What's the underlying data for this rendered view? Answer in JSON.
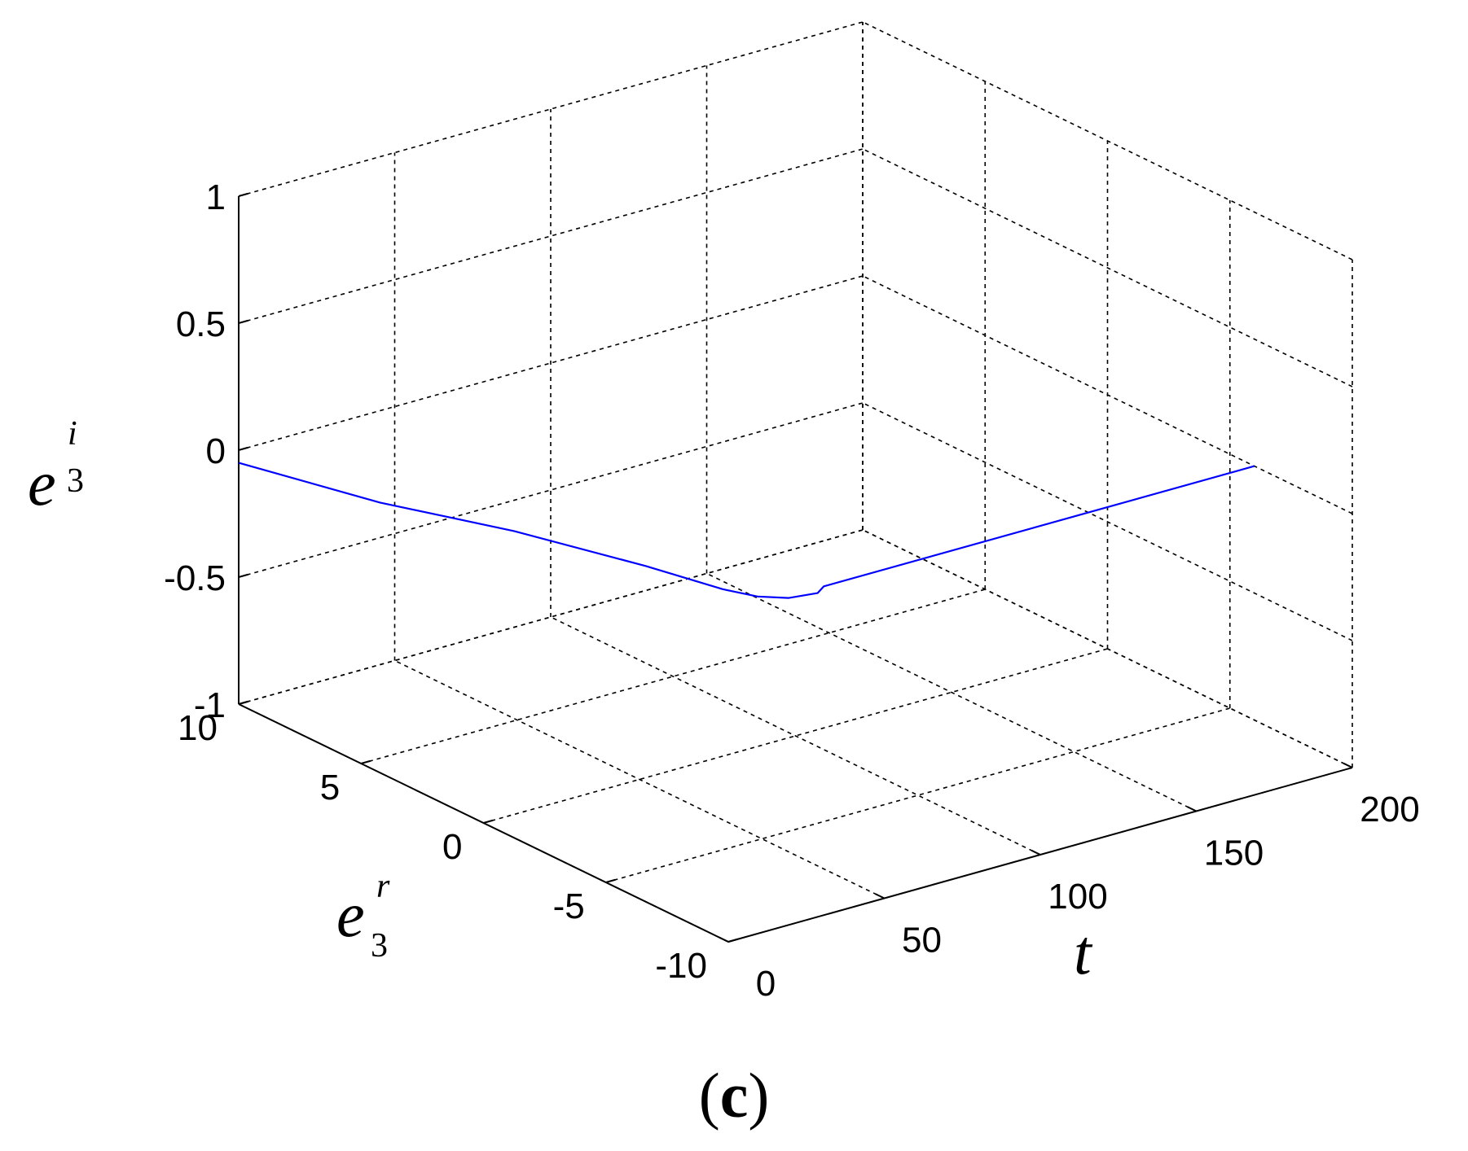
{
  "chart_data": {
    "type": "line",
    "projection": "3d",
    "grid": true,
    "axes": {
      "t": {
        "label": "t",
        "range": [
          0,
          200
        ],
        "ticks": [
          0,
          50,
          100,
          150,
          200
        ],
        "tick_labels": [
          "0",
          "50",
          "100",
          "150",
          "200"
        ]
      },
      "er": {
        "label_base": "e",
        "label_sub": "3",
        "label_sup": "r",
        "range": [
          -10,
          10
        ],
        "ticks": [
          -10,
          -5,
          0,
          5,
          10
        ],
        "tick_labels": [
          "-10",
          "-5",
          "0",
          "5",
          "10"
        ]
      },
      "ei": {
        "label_base": "e",
        "label_sub": "3",
        "label_sup": "i",
        "range": [
          -1,
          1
        ],
        "ticks": [
          -1,
          -0.5,
          0,
          0.5,
          1
        ],
        "tick_labels": [
          "-1",
          "-0.5",
          "0",
          "0.5",
          "1"
        ]
      }
    },
    "series": [
      {
        "color": "#0000ff",
        "points": [
          {
            "t": 0,
            "er": 10,
            "ei": -0.05
          },
          {
            "t": 10,
            "er": 5.5,
            "ei": -0.03
          },
          {
            "t": 20,
            "er": 1.3,
            "ei": 0.02
          },
          {
            "t": 30,
            "er": -2.8,
            "ei": 0.04
          },
          {
            "t": 36,
            "er": -5.2,
            "ei": 0.04
          },
          {
            "t": 40,
            "er": -6.1,
            "ei": 0.04
          },
          {
            "t": 50,
            "er": -6.1,
            "ei": 0.0
          },
          {
            "t": 60,
            "er": -6.0,
            "ei": -0.02
          },
          {
            "t": 62,
            "er": -6.0,
            "ei": 0.0
          },
          {
            "t": 200,
            "er": -6.0,
            "ei": 0.0
          }
        ]
      }
    ]
  },
  "caption": {
    "open": "(",
    "letter": "c",
    "close": ")"
  }
}
